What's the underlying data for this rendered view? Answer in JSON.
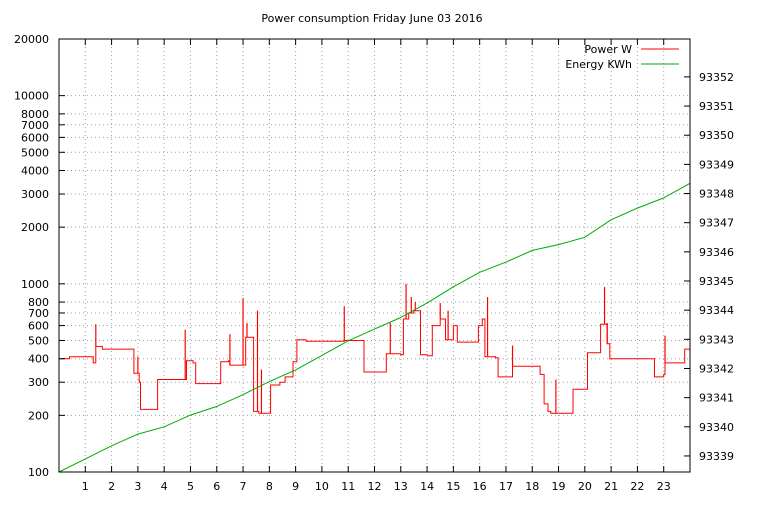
{
  "chart_data": {
    "type": "line",
    "title": "Power consumption Friday June 03 2016",
    "xlabel": "",
    "ylabel": "",
    "x_range": [
      0,
      24
    ],
    "x_ticks": [
      1,
      2,
      3,
      4,
      5,
      6,
      7,
      8,
      9,
      10,
      11,
      12,
      13,
      14,
      15,
      16,
      17,
      18,
      19,
      20,
      21,
      22,
      23
    ],
    "y_left": {
      "scale": "log",
      "range": [
        100,
        20000
      ],
      "ticks": [
        100,
        200,
        300,
        400,
        500,
        600,
        700,
        800,
        1000,
        2000,
        3000,
        4000,
        5000,
        6000,
        7000,
        8000,
        10000,
        20000
      ]
    },
    "y_right": {
      "scale": "linear",
      "range": [
        93338.45,
        93353.3
      ],
      "ticks": [
        93339,
        93340,
        93341,
        93342,
        93343,
        93344,
        93345,
        93346,
        93347,
        93348,
        93349,
        93350,
        93351,
        93352
      ]
    },
    "grid": true,
    "legend": "top-right",
    "series": [
      {
        "name": "Power W",
        "axis": "left",
        "color": "#ff0000",
        "step": true,
        "points": [
          [
            0.0,
            400
          ],
          [
            0.4,
            410
          ],
          [
            1.1,
            410
          ],
          [
            1.3,
            380
          ],
          [
            1.4,
            465
          ],
          [
            1.65,
            450
          ],
          [
            2.8,
            450
          ],
          [
            2.85,
            335
          ],
          [
            3.05,
            300
          ],
          [
            3.1,
            215
          ],
          [
            3.7,
            215
          ],
          [
            3.75,
            310
          ],
          [
            4.8,
            310
          ],
          [
            4.85,
            390
          ],
          [
            5.1,
            380
          ],
          [
            5.2,
            295
          ],
          [
            6.1,
            295
          ],
          [
            6.15,
            385
          ],
          [
            6.45,
            390
          ],
          [
            6.5,
            370
          ],
          [
            7.0,
            370
          ],
          [
            7.1,
            520
          ],
          [
            7.4,
            210
          ],
          [
            7.6,
            205
          ],
          [
            7.9,
            205
          ],
          [
            8.05,
            290
          ],
          [
            8.4,
            300
          ],
          [
            8.6,
            320
          ],
          [
            8.9,
            385
          ],
          [
            9.05,
            505
          ],
          [
            9.4,
            495
          ],
          [
            10.5,
            495
          ],
          [
            10.85,
            500
          ],
          [
            11.5,
            500
          ],
          [
            11.6,
            340
          ],
          [
            12.4,
            340
          ],
          [
            12.45,
            425
          ],
          [
            13.0,
            420
          ],
          [
            13.1,
            650
          ],
          [
            13.3,
            700
          ],
          [
            13.5,
            720
          ],
          [
            13.75,
            420
          ],
          [
            14.0,
            415
          ],
          [
            14.2,
            600
          ],
          [
            14.5,
            650
          ],
          [
            14.7,
            505
          ],
          [
            14.95,
            505
          ],
          [
            15.0,
            600
          ],
          [
            15.15,
            490
          ],
          [
            15.9,
            490
          ],
          [
            15.95,
            600
          ],
          [
            16.1,
            650
          ],
          [
            16.2,
            410
          ],
          [
            16.6,
            405
          ],
          [
            16.7,
            320
          ],
          [
            17.2,
            320
          ],
          [
            17.25,
            365
          ],
          [
            18.2,
            365
          ],
          [
            18.3,
            330
          ],
          [
            18.45,
            230
          ],
          [
            18.6,
            210
          ],
          [
            18.7,
            205
          ],
          [
            19.5,
            205
          ],
          [
            19.55,
            275
          ],
          [
            20.05,
            275
          ],
          [
            20.1,
            430
          ],
          [
            20.5,
            430
          ],
          [
            20.6,
            610
          ],
          [
            20.85,
            480
          ],
          [
            20.95,
            400
          ],
          [
            22.6,
            400
          ],
          [
            22.65,
            320
          ],
          [
            23.0,
            330
          ],
          [
            23.05,
            380
          ],
          [
            23.75,
            380
          ],
          [
            23.8,
            450
          ],
          [
            24.0,
            450
          ]
        ],
        "spikes": [
          [
            1.4,
            610
          ],
          [
            3.0,
            410
          ],
          [
            4.8,
            570
          ],
          [
            6.5,
            540
          ],
          [
            7.0,
            840
          ],
          [
            7.15,
            620
          ],
          [
            7.55,
            720
          ],
          [
            7.7,
            350
          ],
          [
            10.85,
            760
          ],
          [
            12.6,
            620
          ],
          [
            13.2,
            1000
          ],
          [
            13.4,
            850
          ],
          [
            13.55,
            800
          ],
          [
            14.5,
            790
          ],
          [
            14.8,
            720
          ],
          [
            16.3,
            850
          ],
          [
            17.25,
            470
          ],
          [
            18.9,
            310
          ],
          [
            20.75,
            960
          ],
          [
            20.85,
            620
          ],
          [
            23.05,
            530
          ]
        ]
      },
      {
        "name": "Energy KWh",
        "axis": "right",
        "color": "#00aa00",
        "step": false,
        "points": [
          [
            0.0,
            93338.45
          ],
          [
            1.0,
            93338.9
          ],
          [
            2.0,
            93339.35
          ],
          [
            3.0,
            93339.75
          ],
          [
            4.0,
            93340.0
          ],
          [
            5.0,
            93340.4
          ],
          [
            6.0,
            93340.7
          ],
          [
            7.0,
            93341.1
          ],
          [
            8.0,
            93341.55
          ],
          [
            9.0,
            93341.95
          ],
          [
            10.0,
            93342.45
          ],
          [
            11.0,
            93342.95
          ],
          [
            12.0,
            93343.35
          ],
          [
            13.0,
            93343.75
          ],
          [
            14.0,
            93344.25
          ],
          [
            15.0,
            93344.8
          ],
          [
            16.0,
            93345.3
          ],
          [
            17.0,
            93345.65
          ],
          [
            18.0,
            93346.05
          ],
          [
            19.0,
            93346.25
          ],
          [
            20.0,
            93346.5
          ],
          [
            21.0,
            93347.1
          ],
          [
            22.0,
            93347.5
          ],
          [
            23.0,
            93347.85
          ],
          [
            24.0,
            93348.35
          ]
        ]
      }
    ]
  }
}
